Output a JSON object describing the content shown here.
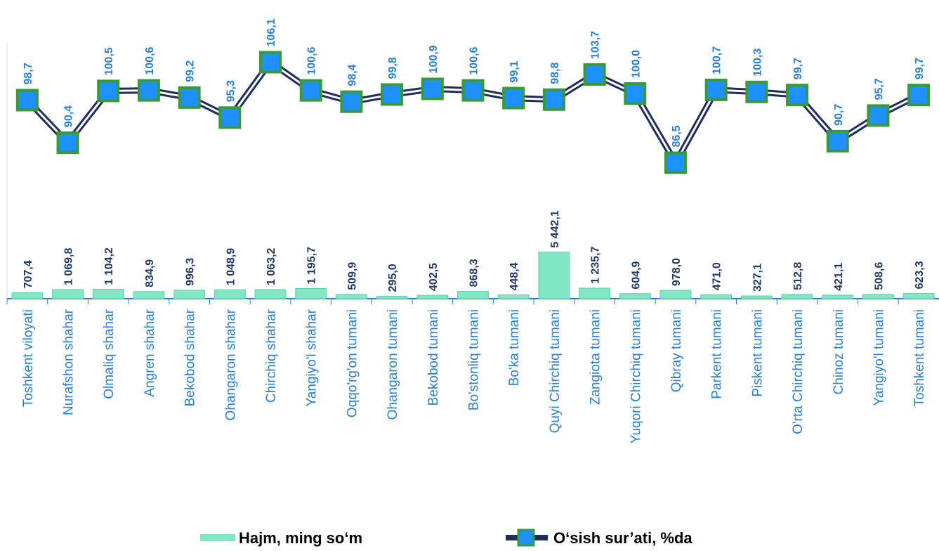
{
  "chart_data": {
    "type": "bar",
    "categories": [
      "Toshkent viloyati",
      "Nurafshon shahar",
      "Olmaliq shahar",
      "Angren shahar",
      "Bekobod shahar",
      "Ohangaron shahar",
      "Chirchiq shahar",
      "Yangiyo'l shahar",
      "Oqqo'rg'on tumani",
      "Ohangaron tumani",
      "Bekobod tumani",
      "Bo'stonliq tumani",
      "Bo'ka tumani",
      "Quyi Chirchiq tumani",
      "Zangiota tumani",
      "Yuqori Chirchiq tumani",
      "Qibray tumani",
      "Parkent tumani",
      "Piskent tumani",
      "O'rta Chirchiq tumani",
      "Chinoz tumani",
      "Yangiyo'l tumani",
      "Toshkent tumani"
    ],
    "series": [
      {
        "name": "Hajm, ming so‘m",
        "type": "bar",
        "color": "#7fe8c4",
        "values": [
          707.4,
          1069.8,
          1104.2,
          834.9,
          996.3,
          1048.9,
          1063.2,
          1195.7,
          509.9,
          295.0,
          402.5,
          868.3,
          448.4,
          5442.1,
          1235.7,
          604.9,
          978.0,
          471.0,
          327.1,
          512.8,
          421.1,
          508.6,
          623.3
        ],
        "value_labels": [
          "707,4",
          "1 069,8",
          "1 104,2",
          "834,9",
          "996,3",
          "1 048,9",
          "1 063,2",
          "1 195,7",
          "509,9",
          "295,0",
          "402,5",
          "868,3",
          "448,4",
          "5 442,1",
          "1 235,7",
          "604,9",
          "978,0",
          "471,0",
          "327,1",
          "512,8",
          "421,1",
          "508,6",
          "623,3"
        ]
      },
      {
        "name": "O‘sish sur’ati,  %da",
        "type": "line",
        "axis": "y2",
        "color": "#1f2d5a",
        "marker_color": "#1e90ff",
        "values": [
          98.7,
          90.4,
          100.5,
          100.6,
          99.2,
          95.3,
          106.1,
          100.6,
          98.4,
          99.8,
          100.9,
          100.6,
          99.1,
          98.8,
          103.7,
          100.0,
          86.5,
          100.7,
          100.3,
          99.7,
          90.7,
          95.7,
          99.7
        ],
        "value_labels": [
          "98,7",
          "90,4",
          "100,5",
          "100,6",
          "99,2",
          "95,3",
          "106,1",
          "100,6",
          "98,4",
          "99,8",
          "100,9",
          "100,6",
          "99,1",
          "98,8",
          "103,7",
          "100,0",
          "86,5",
          "100,7",
          "100,3",
          "99,7",
          "90,7",
          "95,7",
          "99,7"
        ]
      }
    ],
    "ylim": [
      0,
      30000
    ],
    "y2lim": [
      60,
      110
    ]
  }
}
